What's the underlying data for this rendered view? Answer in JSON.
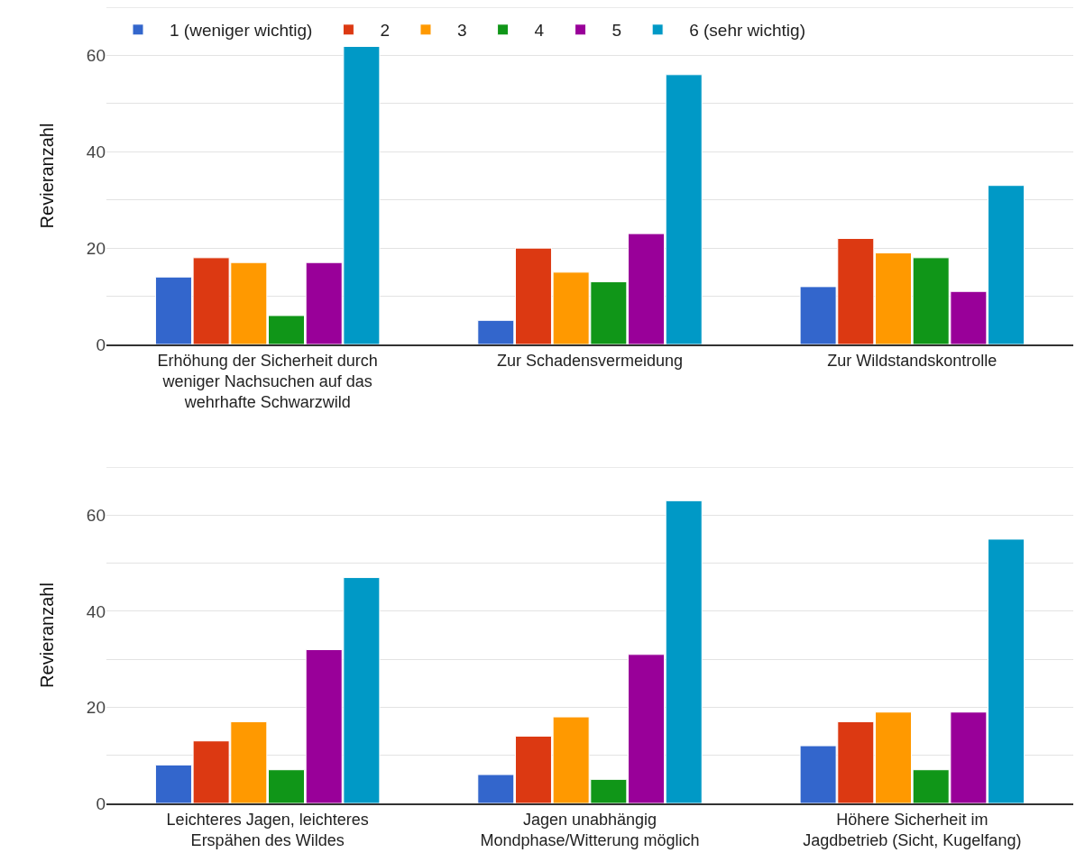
{
  "chart_data": [
    {
      "type": "bar",
      "ylabel": "Revieranzahl",
      "categories": [
        "Erhöhung der Sicherheit durch weniger Nachsuchen auf das wehrhafte Schwarzwild",
        "Zur Schadensvermeidung",
        "Zur Wildstandskontrolle"
      ],
      "series": [
        {
          "name": "1 (weniger wichtig)",
          "color": "#3366cc",
          "values": [
            14,
            5,
            12
          ]
        },
        {
          "name": "2",
          "color": "#dc3912",
          "values": [
            18,
            20,
            22
          ]
        },
        {
          "name": "3",
          "color": "#ff9900",
          "values": [
            17,
            15,
            19
          ]
        },
        {
          "name": "4",
          "color": "#109618",
          "values": [
            6,
            13,
            18
          ]
        },
        {
          "name": "5",
          "color": "#990099",
          "values": [
            17,
            23,
            11
          ]
        },
        {
          "name": "6 (sehr wichtig)",
          "color": "#0099c6",
          "values": [
            62,
            56,
            33
          ]
        }
      ],
      "ylim": [
        0,
        70
      ],
      "yticks": [
        0,
        {
          "value": 10,
          "label": null
        },
        20,
        {
          "value": 30,
          "label": null
        },
        40,
        {
          "value": 50,
          "label": null
        },
        60,
        {
          "value": 70,
          "label": null
        }
      ],
      "grid": "y",
      "legend": "top"
    },
    {
      "type": "bar",
      "ylabel": "Revieranzahl",
      "categories": [
        "Leichteres Jagen, leichteres Erspähen des Wildes",
        "Jagen unabhängig Mondphase/Witterung möglich",
        "Höhere Sicherheit im Jagdbetrieb (Sicht, Kugelfang)"
      ],
      "series": [
        {
          "color": "#3366cc",
          "values": [
            8,
            6,
            12
          ]
        },
        {
          "color": "#dc3912",
          "values": [
            13,
            14,
            17
          ]
        },
        {
          "color": "#ff9900",
          "values": [
            17,
            18,
            19
          ]
        },
        {
          "color": "#109618",
          "values": [
            7,
            5,
            7
          ]
        },
        {
          "color": "#990099",
          "values": [
            32,
            31,
            19
          ]
        },
        {
          "color": "#0099c6",
          "values": [
            47,
            63,
            55
          ]
        }
      ],
      "ylim": [
        0,
        70
      ],
      "yticks": [
        0,
        {
          "value": 10,
          "label": null
        },
        20,
        {
          "value": 30,
          "label": null
        },
        40,
        {
          "value": 50,
          "label": null
        },
        60,
        {
          "value": 70,
          "label": null
        }
      ],
      "grid": "y"
    }
  ]
}
